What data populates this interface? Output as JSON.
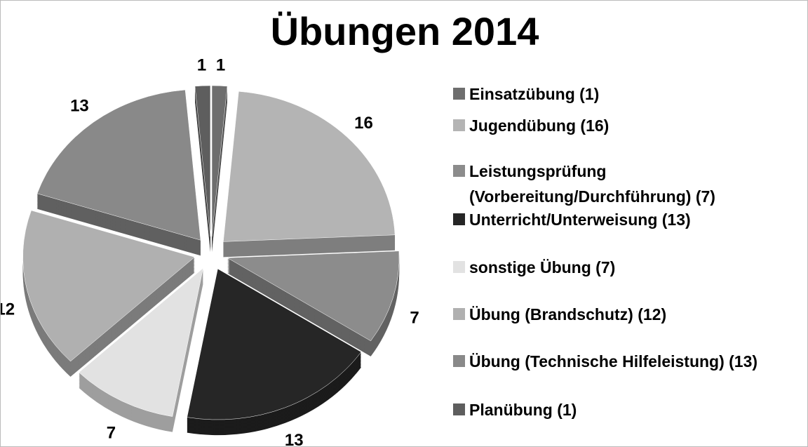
{
  "chart_data": {
    "type": "pie",
    "title": "Übungen 2014",
    "categories": [
      "Einsatzübung (1)",
      "Jugendübung (16)",
      "Leistungsprüfung (Vorbereitung/Durchführung) (7)",
      "Unterricht/Unterweisung (13)",
      "sonstige Übung (7)",
      "Übung (Brandschutz) (12)",
      "Übung (Technische Hilfeleistung) (13)",
      "Planübung (1)"
    ],
    "values": [
      1,
      16,
      7,
      13,
      7,
      12,
      13,
      1
    ],
    "colors": [
      "#6e6e6e",
      "#b4b4b4",
      "#8c8c8c",
      "#262626",
      "#e2e2e2",
      "#b0b0b0",
      "#898989",
      "#5e5e5e"
    ],
    "legend": "right"
  }
}
